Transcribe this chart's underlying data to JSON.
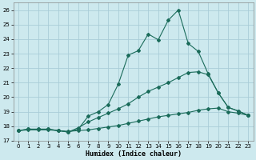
{
  "xlabel": "Humidex (Indice chaleur)",
  "bg_color": "#cde9ee",
  "grid_color": "#aacdd8",
  "line_color": "#1a6b5a",
  "xlim": [
    -0.5,
    23.5
  ],
  "ylim": [
    17.0,
    26.5
  ],
  "xticks": [
    0,
    1,
    2,
    3,
    4,
    5,
    6,
    7,
    8,
    9,
    10,
    11,
    12,
    13,
    14,
    15,
    16,
    17,
    18,
    19,
    20,
    21,
    22,
    23
  ],
  "yticks": [
    17,
    18,
    19,
    20,
    21,
    22,
    23,
    24,
    25,
    26
  ],
  "line1_x": [
    0,
    1,
    2,
    3,
    4,
    5,
    6,
    7,
    8,
    9,
    10,
    11,
    12,
    13,
    14,
    15,
    16,
    17,
    18,
    19,
    20,
    21,
    22,
    23
  ],
  "line1_y": [
    17.7,
    17.8,
    17.8,
    17.8,
    17.7,
    17.6,
    17.8,
    18.7,
    19.0,
    19.5,
    20.9,
    22.9,
    23.2,
    24.35,
    23.95,
    25.3,
    26.0,
    23.7,
    23.15,
    21.6,
    20.3,
    19.3,
    19.05,
    18.75
  ],
  "line2_x": [
    0,
    1,
    2,
    3,
    4,
    5,
    6,
    7,
    8,
    9,
    10,
    11,
    12,
    13,
    14,
    15,
    16,
    17,
    18,
    19,
    20,
    21,
    22,
    23
  ],
  "line2_y": [
    17.7,
    17.8,
    17.8,
    17.8,
    17.7,
    17.6,
    17.9,
    18.3,
    18.6,
    18.9,
    19.2,
    19.55,
    20.0,
    20.4,
    20.7,
    21.0,
    21.35,
    21.7,
    21.75,
    21.55,
    20.3,
    19.3,
    19.05,
    18.75
  ],
  "line3_x": [
    0,
    1,
    2,
    3,
    4,
    5,
    6,
    7,
    8,
    9,
    10,
    11,
    12,
    13,
    14,
    15,
    16,
    17,
    18,
    19,
    20,
    21,
    22,
    23
  ],
  "line3_y": [
    17.7,
    17.75,
    17.75,
    17.75,
    17.7,
    17.65,
    17.7,
    17.75,
    17.85,
    17.95,
    18.05,
    18.2,
    18.35,
    18.5,
    18.65,
    18.75,
    18.85,
    18.95,
    19.1,
    19.2,
    19.25,
    19.0,
    18.9,
    18.75
  ]
}
